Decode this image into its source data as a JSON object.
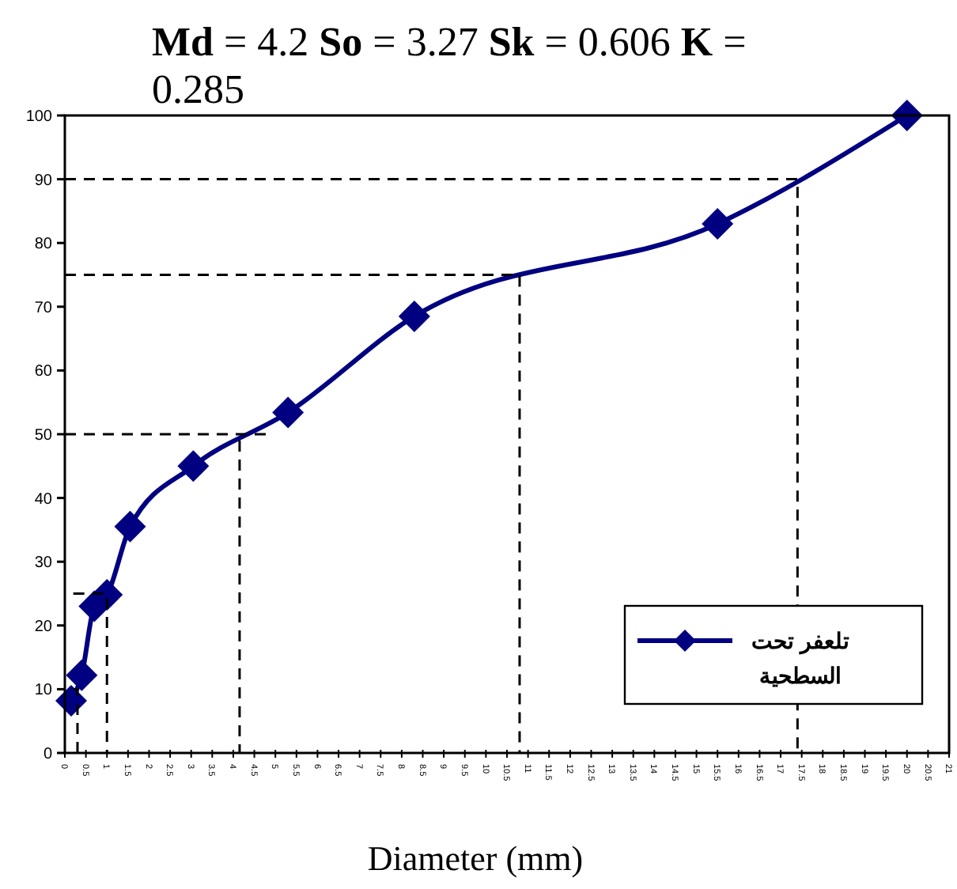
{
  "chart_data": {
    "type": "line",
    "title": "Md = 4.2   So = 3.27  Sk = 0.606   K = 0.285",
    "xlabel": "Diameter  (mm)",
    "xlim": [
      0,
      21
    ],
    "xticks": [
      0,
      0.5,
      1,
      1.5,
      2,
      2.5,
      3,
      3.5,
      4,
      4.5,
      5,
      5.5,
      6,
      6.5,
      7,
      7.5,
      8,
      8.5,
      9,
      9.5,
      10,
      10.5,
      11,
      11.5,
      12,
      12.5,
      13,
      13.5,
      14,
      14.5,
      15,
      15.5,
      16,
      16.5,
      17,
      17.5,
      18,
      18.5,
      19,
      19.5,
      20,
      20.5,
      21
    ],
    "ylim": [
      0,
      100
    ],
    "yticks": [
      0,
      10,
      20,
      30,
      40,
      50,
      60,
      70,
      80,
      90,
      100
    ],
    "grid": false,
    "legend": "right",
    "series": [
      {
        "name": "تلعفر تحت السطحية",
        "color": "#000080",
        "marker": "diamond",
        "line_style": "solid",
        "x": [
          0.15,
          0.4,
          0.7,
          1.0,
          1.55,
          3.05,
          5.3,
          8.3,
          15.5,
          20
        ],
        "values": [
          8.2,
          12.2,
          23,
          24.8,
          35.5,
          45,
          53.4,
          68.5,
          83,
          100
        ]
      },
      {
        "type": "line",
        "color": "#000000",
        "marker": "none",
        "line_style": "dashed",
        "x": [
          0,
          17.4,
          17.4
        ],
        "values": [
          90,
          90,
          0
        ]
      },
      {
        "type": "line",
        "color": "#000000",
        "marker": "none",
        "line_style": "dashed",
        "x": [
          0,
          10.8,
          10.8
        ],
        "values": [
          75,
          75,
          0
        ]
      },
      {
        "type": "line",
        "color": "#000000",
        "marker": "none",
        "line_style": "dashed",
        "x": [
          0,
          4.8,
          null,
          4.15,
          4.15
        ],
        "values": [
          50,
          50,
          null,
          49,
          0
        ]
      },
      {
        "type": "line",
        "color": "#000000",
        "marker": "none",
        "line_style": "dashed",
        "x": [
          0.2,
          1.0,
          1.0
        ],
        "values": [
          25,
          25,
          0
        ]
      },
      {
        "type": "line",
        "color": "#000000",
        "marker": "none",
        "line_style": "dashed",
        "x": [
          0.2,
          0.3,
          0.3
        ],
        "values": [
          10,
          10,
          0
        ]
      }
    ]
  }
}
